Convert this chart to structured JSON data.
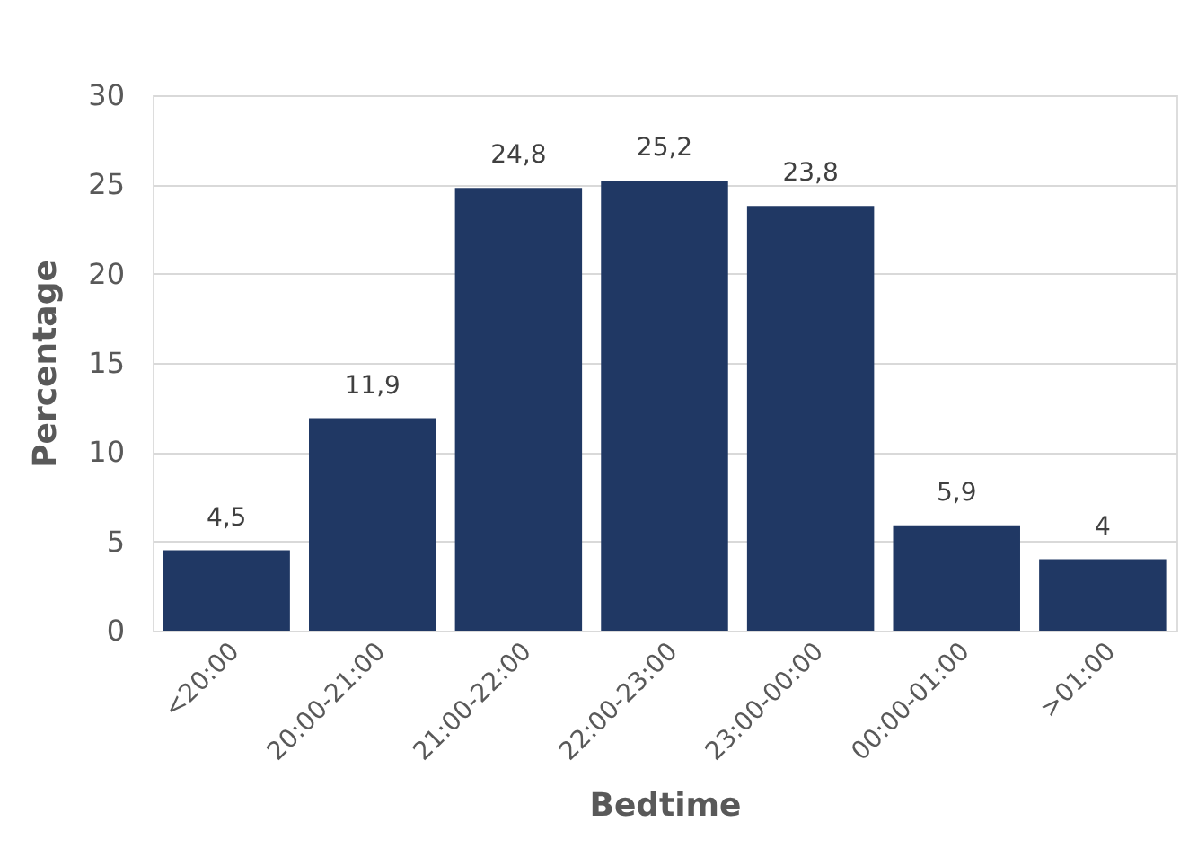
{
  "chart_data": {
    "type": "bar",
    "xlabel": "Bedtime",
    "ylabel": "Percentage",
    "categories": [
      "<20:00",
      "20:00-21:00",
      "21:00-22:00",
      "22:00-23:00",
      "23:00-00:00",
      "00:00-01:00",
      ">01:00"
    ],
    "values": [
      4.5,
      11.9,
      24.8,
      25.2,
      23.8,
      5.9,
      4
    ],
    "value_labels": [
      "4,5",
      "11,9",
      "24,8",
      "25,2",
      "23,8",
      "5,9",
      "4"
    ],
    "color": "#203864",
    "ylim": [
      0,
      30
    ],
    "yticks": [
      0,
      5,
      10,
      15,
      20,
      25,
      30
    ],
    "grid": "y"
  }
}
